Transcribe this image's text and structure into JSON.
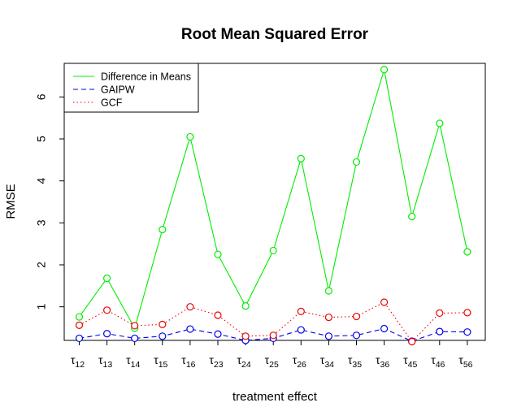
{
  "chart_data": {
    "type": "line",
    "title": "Root Mean Squared Error",
    "xlabel": "treatment effect",
    "ylabel": "RMSE",
    "categories": [
      {
        "symbol": "τ",
        "sub": "12"
      },
      {
        "symbol": "τ",
        "sub": "13"
      },
      {
        "symbol": "τ",
        "sub": "14"
      },
      {
        "symbol": "τ",
        "sub": "15"
      },
      {
        "symbol": "τ",
        "sub": "16"
      },
      {
        "symbol": "τ",
        "sub": "23"
      },
      {
        "symbol": "τ",
        "sub": "24"
      },
      {
        "symbol": "τ",
        "sub": "25"
      },
      {
        "symbol": "τ",
        "sub": "26"
      },
      {
        "symbol": "τ",
        "sub": "34"
      },
      {
        "symbol": "τ",
        "sub": "35"
      },
      {
        "symbol": "τ",
        "sub": "36"
      },
      {
        "symbol": "τ",
        "sub": "45"
      },
      {
        "symbol": "τ",
        "sub": "46"
      },
      {
        "symbol": "τ",
        "sub": "56"
      }
    ],
    "y_ticks": [
      "1",
      "2",
      "3",
      "4",
      "5",
      "6"
    ],
    "ylim": [
      0.2,
      6.8
    ],
    "grid": false,
    "legend_position": "top-left",
    "series": [
      {
        "name": "Difference in Means",
        "color": "#00ee00",
        "line_style": "solid",
        "values": [
          0.76,
          1.68,
          0.49,
          2.84,
          5.05,
          2.25,
          1.02,
          2.34,
          4.53,
          1.38,
          4.45,
          6.65,
          3.15,
          5.37,
          2.31
        ]
      },
      {
        "name": "GAIPW",
        "color": "#0000ee",
        "line_style": "dashed",
        "values": [
          0.25,
          0.36,
          0.25,
          0.3,
          0.47,
          0.35,
          0.2,
          0.25,
          0.45,
          0.3,
          0.32,
          0.48,
          0.18,
          0.41,
          0.4
        ]
      },
      {
        "name": "GCF",
        "color": "#ee0000",
        "line_style": "dotted",
        "values": [
          0.56,
          0.92,
          0.55,
          0.58,
          1.0,
          0.8,
          0.3,
          0.32,
          0.89,
          0.75,
          0.77,
          1.11,
          0.17,
          0.85,
          0.86
        ]
      }
    ]
  }
}
